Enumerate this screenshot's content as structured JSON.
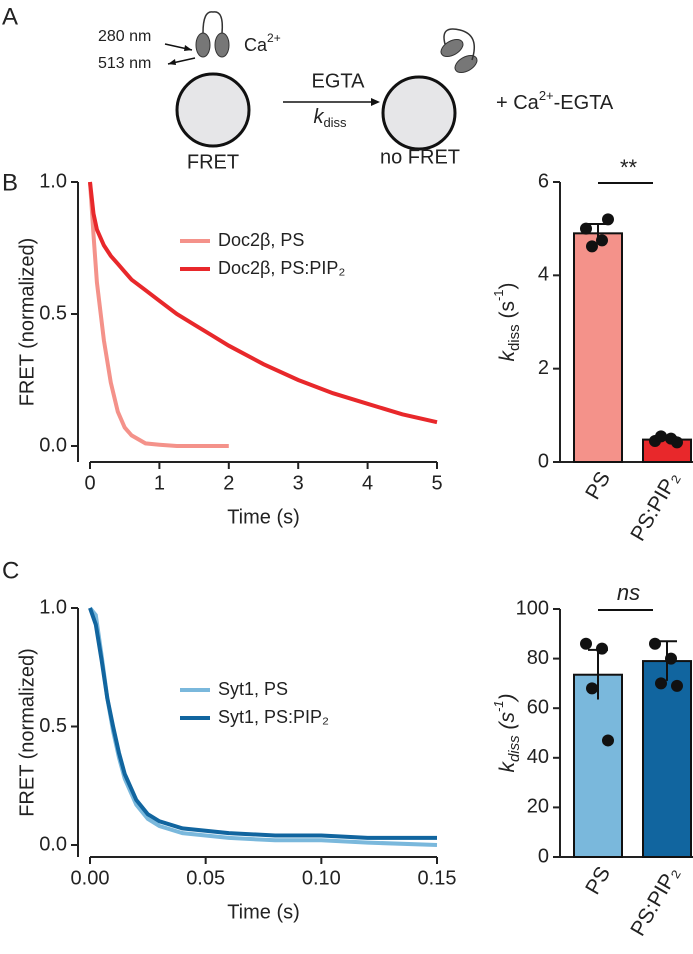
{
  "panels": {
    "a": "A",
    "b": "B",
    "c": "C"
  },
  "diagram": {
    "ex": "280 nm",
    "em": "513 nm",
    "ca": [
      "Ca",
      "2+"
    ],
    "egta": "EGTA",
    "k": [
      "k",
      "diss"
    ],
    "fret": "FRET",
    "nofret": "no FRET",
    "product": [
      "+ Ca",
      "2+",
      "-EGTA"
    ]
  },
  "chart_data": [
    {
      "type": "line",
      "xlabel": "Time (s)",
      "ylabel": "FRET (normalized)",
      "x": [
        0,
        0.05,
        0.1,
        0.2,
        0.3,
        0.4,
        0.5,
        0.6,
        0.8,
        1,
        1.25,
        1.5,
        1.75,
        2,
        2.5,
        3,
        3.5,
        4,
        4.5,
        5
      ],
      "series": [
        {
          "name": "Doc2β, PS",
          "color": "#f4928a",
          "values": [
            1,
            0.8,
            0.62,
            0.4,
            0.24,
            0.13,
            0.07,
            0.04,
            0.01,
            0.005,
            0,
            0,
            0,
            0,
            null,
            null,
            null,
            null,
            null,
            null
          ]
        },
        {
          "name": "Doc2β, PS:PIP₂",
          "color": "#e8282b",
          "values": [
            1,
            0.88,
            0.82,
            0.76,
            0.72,
            0.69,
            0.66,
            0.63,
            0.59,
            0.55,
            0.5,
            0.46,
            0.42,
            0.38,
            0.31,
            0.25,
            0.2,
            0.16,
            0.12,
            0.09
          ]
        }
      ],
      "xlim": [
        0,
        5
      ],
      "xticks": [
        0,
        1,
        2,
        3,
        4,
        5
      ],
      "ylim": [
        0,
        1
      ],
      "yticks": [
        {
          "value": 0,
          "label": "0.0"
        },
        {
          "value": 0.5,
          "label": "0.5"
        },
        {
          "value": 1,
          "label": "1.0"
        }
      ]
    },
    {
      "type": "bar",
      "ylabel": [
        "k",
        "diss",
        " (s",
        "-1",
        ")"
      ],
      "annotation": "**",
      "categories": [
        "PS",
        "PS:PIP₂"
      ],
      "values": [
        4.9,
        0.48
      ],
      "errors": [
        0.2,
        0.05
      ],
      "points": [
        [
          5.0,
          4.75,
          4.62,
          5.2
        ],
        [
          0.45,
          0.5,
          0.55,
          0.42
        ]
      ],
      "colors": [
        "#f4928a",
        "#e8282b"
      ],
      "ylim": [
        0,
        6
      ],
      "yticks": [
        0,
        2,
        4,
        6
      ]
    },
    {
      "type": "line",
      "xlabel": "Time (s)",
      "ylabel": "FRET (normalized)",
      "x": [
        0,
        0.0025,
        0.005,
        0.0075,
        0.01,
        0.0125,
        0.015,
        0.02,
        0.025,
        0.03,
        0.04,
        0.05,
        0.06,
        0.08,
        0.1,
        0.12,
        0.15
      ],
      "series": [
        {
          "name": "Syt1, PS",
          "color": "#7ab8dc",
          "values": [
            1,
            0.97,
            0.8,
            0.62,
            0.48,
            0.37,
            0.28,
            0.17,
            0.11,
            0.08,
            0.05,
            0.04,
            0.03,
            0.02,
            0.02,
            0.01,
            0
          ]
        },
        {
          "name": "Syt1, PS:PIP₂",
          "color": "#11659f",
          "values": [
            1,
            0.93,
            0.78,
            0.62,
            0.5,
            0.39,
            0.3,
            0.19,
            0.13,
            0.1,
            0.07,
            0.06,
            0.05,
            0.04,
            0.04,
            0.03,
            0.03
          ]
        }
      ],
      "xlim": [
        0,
        0.15
      ],
      "xticks": [
        {
          "value": 0,
          "label": "0.00"
        },
        {
          "value": 0.05,
          "label": "0.05"
        },
        {
          "value": 0.1,
          "label": "0.10"
        },
        {
          "value": 0.15,
          "label": "0.15"
        }
      ],
      "ylim": [
        0,
        1
      ],
      "yticks": [
        {
          "value": 0,
          "label": "0.0"
        },
        {
          "value": 0.5,
          "label": "0.5"
        },
        {
          "value": 1,
          "label": "1.0"
        }
      ]
    },
    {
      "type": "bar",
      "ylabel": [
        "k",
        "diss",
        " (s",
        "-1",
        ")"
      ],
      "italic": true,
      "annotation": "ns",
      "categories": [
        "PS",
        "PS:PIP₂"
      ],
      "values": [
        73.5,
        79
      ],
      "errors": [
        10,
        8
      ],
      "points": [
        [
          86,
          84,
          68,
          47
        ],
        [
          86,
          80,
          70,
          69
        ]
      ],
      "colors": [
        "#7ab8dc",
        "#11659f"
      ],
      "ylim": [
        0,
        100
      ],
      "yticks": [
        0,
        20,
        40,
        60,
        80,
        100
      ]
    }
  ]
}
